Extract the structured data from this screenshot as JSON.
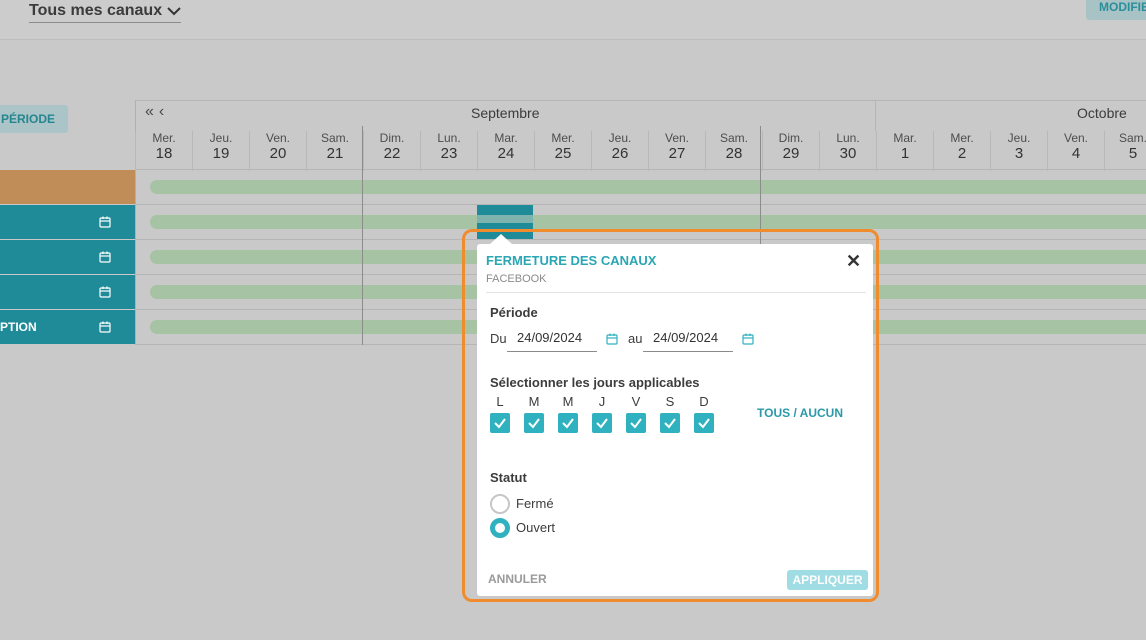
{
  "header": {
    "channel_select": "Tous mes canaux",
    "modify_button": "MODIFIER"
  },
  "grid": {
    "periode_button": "PÉRIODE",
    "months": [
      "Septembre",
      "Octobre"
    ],
    "days": [
      {
        "name": "Mer.",
        "num": "18"
      },
      {
        "name": "Jeu.",
        "num": "19"
      },
      {
        "name": "Ven.",
        "num": "20"
      },
      {
        "name": "Sam.",
        "num": "21"
      },
      {
        "name": "Dim.",
        "num": "22"
      },
      {
        "name": "Lun.",
        "num": "23"
      },
      {
        "name": "Mar.",
        "num": "24"
      },
      {
        "name": "Mer.",
        "num": "25"
      },
      {
        "name": "Jeu.",
        "num": "26"
      },
      {
        "name": "Ven.",
        "num": "27"
      },
      {
        "name": "Sam.",
        "num": "28"
      },
      {
        "name": "Dim.",
        "num": "29"
      },
      {
        "name": "Lun.",
        "num": "30"
      },
      {
        "name": "Mar.",
        "num": "1"
      },
      {
        "name": "Mer.",
        "num": "2"
      },
      {
        "name": "Jeu.",
        "num": "3"
      },
      {
        "name": "Ven.",
        "num": "4"
      },
      {
        "name": "Sam.",
        "num": "5"
      }
    ],
    "rows": [
      {
        "label": "",
        "color": "#c08d58"
      },
      {
        "label": "",
        "color": "#208b98"
      },
      {
        "label": "",
        "color": "#208b98"
      },
      {
        "label": "",
        "color": "#208b98"
      },
      {
        "label": "PTION",
        "color": "#208b98"
      }
    ]
  },
  "modal": {
    "title": "FERMETURE DES CANAUX",
    "subtitle": "FACEBOOK",
    "periode_label": "Période",
    "du_label": "Du",
    "date_from": "24/09/2024",
    "au_label": "au",
    "date_to": "24/09/2024",
    "days_label": "Sélectionner les jours applicables",
    "weekdays": [
      "L",
      "M",
      "M",
      "J",
      "V",
      "S",
      "D"
    ],
    "weekdays_checked": [
      true,
      true,
      true,
      true,
      true,
      true,
      true
    ],
    "tous_aucun": "TOUS / AUCUN",
    "statut_label": "Statut",
    "status_options": [
      "Fermé",
      "Ouvert"
    ],
    "status_selected": "Ouvert",
    "cancel": "ANNULER",
    "apply": "APPLIQUER"
  },
  "colors": {
    "accent": "#2fb1c0",
    "highlight": "#f08c2e",
    "bar": "#a6c3a3"
  }
}
